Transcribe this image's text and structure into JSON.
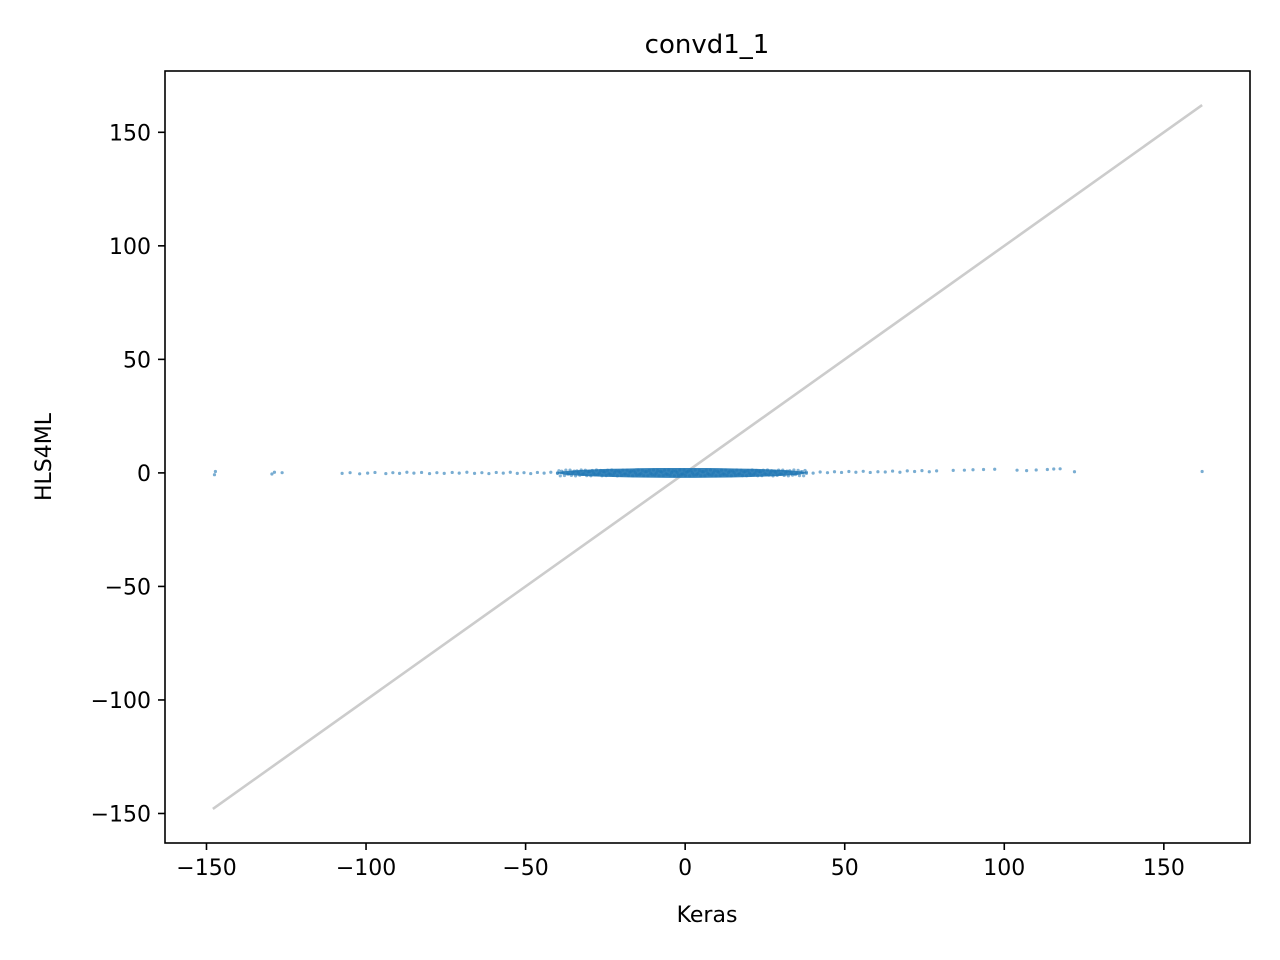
{
  "chart_data": {
    "type": "scatter",
    "title": "convd1_1",
    "xlabel": "Keras",
    "ylabel": "HLS4ML",
    "xlim": [
      -163,
      177
    ],
    "ylim": [
      -163,
      177
    ],
    "xticks": [
      -150,
      -100,
      -50,
      0,
      50,
      100,
      150
    ],
    "yticks": [
      -150,
      -100,
      -50,
      0,
      50,
      100,
      150
    ],
    "grid": false,
    "legend": "none",
    "reference_line": {
      "x": [
        -148,
        162
      ],
      "y": [
        -148,
        162
      ],
      "color": "#cccccc"
    },
    "series": [
      {
        "color": "#1f77b4",
        "points": [
          [
            -147.5,
            -0.8
          ],
          [
            -147.2,
            0.6
          ],
          [
            -129.5,
            -0.5
          ],
          [
            -128.7,
            0.3
          ],
          [
            -126.3,
            0.1
          ],
          [
            -107.5,
            -0.2
          ],
          [
            -105.0,
            0.1
          ],
          [
            -102.0,
            -0.4
          ],
          [
            -99.5,
            -0.1
          ],
          [
            -97.2,
            0.2
          ],
          [
            -93.8,
            -0.3
          ],
          [
            -91.6,
            0.1
          ],
          [
            -89.5,
            -0.2
          ],
          [
            -87.2,
            0.3
          ],
          [
            -85.0,
            -0.1
          ],
          [
            -82.6,
            0.2
          ],
          [
            -80.1,
            -0.3
          ],
          [
            -77.8,
            0.1
          ],
          [
            -75.5,
            -0.2
          ],
          [
            -73.0,
            0.2
          ],
          [
            -70.8,
            -0.1
          ],
          [
            -68.4,
            0.3
          ],
          [
            -66.0,
            -0.2
          ],
          [
            -63.7,
            0.1
          ],
          [
            -61.5,
            -0.3
          ],
          [
            -59.2,
            0.2
          ],
          [
            -57.0,
            -0.1
          ],
          [
            -54.8,
            0.3
          ],
          [
            -52.6,
            -0.2
          ],
          [
            -50.5,
            0.1
          ],
          [
            -48.4,
            -0.3
          ],
          [
            -46.3,
            0.2
          ],
          [
            -44.2,
            -0.1
          ],
          [
            -42.1,
            0.3
          ],
          [
            -40.0,
            -0.2
          ],
          [
            38.0,
            0.3
          ],
          [
            40.1,
            -0.1
          ],
          [
            42.3,
            0.4
          ],
          [
            44.6,
            0.1
          ],
          [
            46.8,
            0.5
          ],
          [
            49.0,
            0.2
          ],
          [
            51.3,
            0.6
          ],
          [
            53.5,
            0.3
          ],
          [
            55.8,
            0.7
          ],
          [
            58.0,
            0.2
          ],
          [
            60.4,
            0.5
          ],
          [
            62.7,
            0.4
          ],
          [
            65.0,
            0.8
          ],
          [
            67.3,
            0.3
          ],
          [
            69.6,
            0.9
          ],
          [
            71.9,
            0.6
          ],
          [
            74.2,
            1.0
          ],
          [
            76.5,
            0.5
          ],
          [
            78.8,
            0.9
          ],
          [
            84.0,
            1.1
          ],
          [
            87.5,
            1.2
          ],
          [
            90.2,
            1.4
          ],
          [
            93.5,
            1.5
          ],
          [
            97.0,
            1.6
          ],
          [
            104.0,
            1.2
          ],
          [
            107.0,
            1.0
          ],
          [
            110.0,
            1.3
          ],
          [
            113.5,
            1.5
          ],
          [
            115.5,
            1.7
          ],
          [
            117.5,
            1.8
          ],
          [
            122.0,
            0.5
          ],
          [
            162.0,
            0.6
          ]
        ],
        "dense_band": {
          "x_range": [
            -40,
            38
          ],
          "y_range": [
            -1.3,
            1.3
          ]
        }
      }
    ]
  }
}
